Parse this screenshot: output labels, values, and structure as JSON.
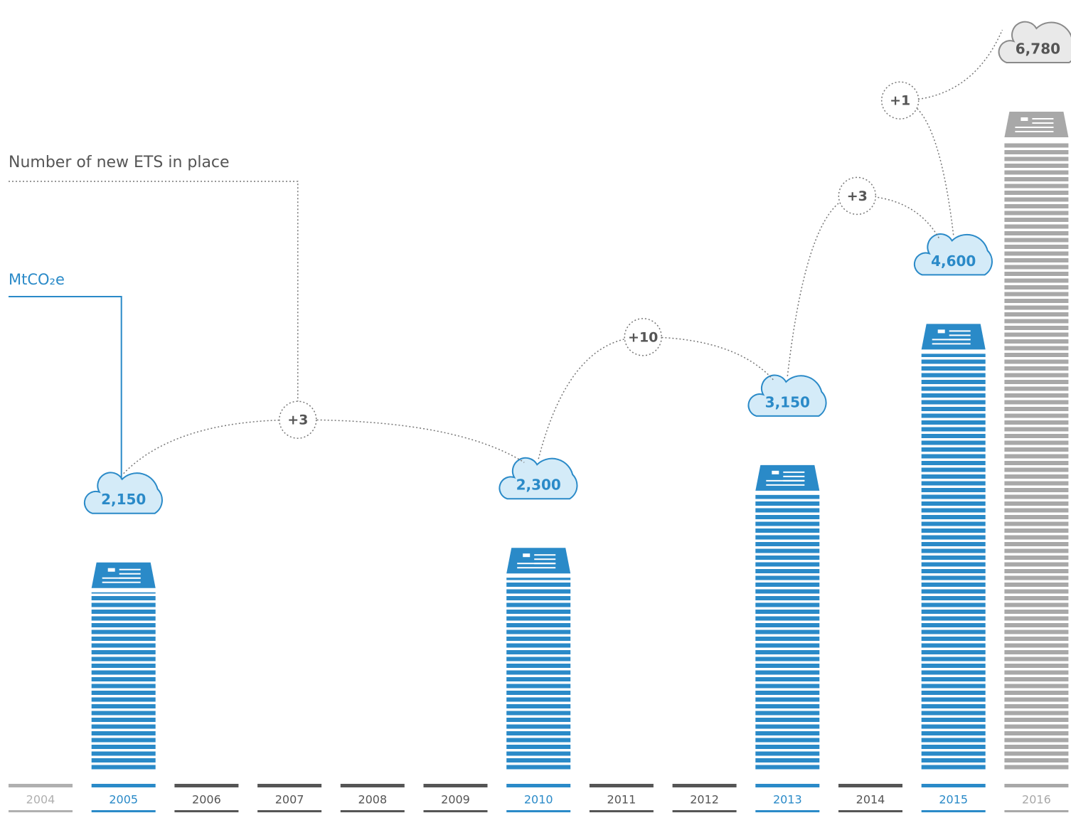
{
  "chart_data": {
    "type": "bar",
    "legend_ets": "Number of new ETS in place",
    "legend_emissions": "MtCO₂e",
    "categories": [
      "2004",
      "2005",
      "2006",
      "2007",
      "2008",
      "2009",
      "2010",
      "2011",
      "2012",
      "2013",
      "2014",
      "2015",
      "2016"
    ],
    "values": [
      null,
      2150,
      null,
      null,
      null,
      null,
      2300,
      null,
      null,
      3150,
      null,
      4600,
      6780
    ],
    "value_labels": [
      null,
      "2,150",
      null,
      null,
      null,
      null,
      "2,300",
      null,
      null,
      "3,150",
      null,
      "4,600",
      "6,780"
    ],
    "colors": [
      "#b0b0b0",
      "#2a8ac8",
      "#555555",
      "#555555",
      "#555555",
      "#555555",
      "#2a8ac8",
      "#555555",
      "#555555",
      "#2a8ac8",
      "#555555",
      "#2a8ac8",
      "#a8a8a8"
    ],
    "ets_added": [
      3,
      10,
      3,
      1
    ],
    "ets_labels": [
      "+3",
      "+10",
      "+3",
      "+1"
    ]
  }
}
